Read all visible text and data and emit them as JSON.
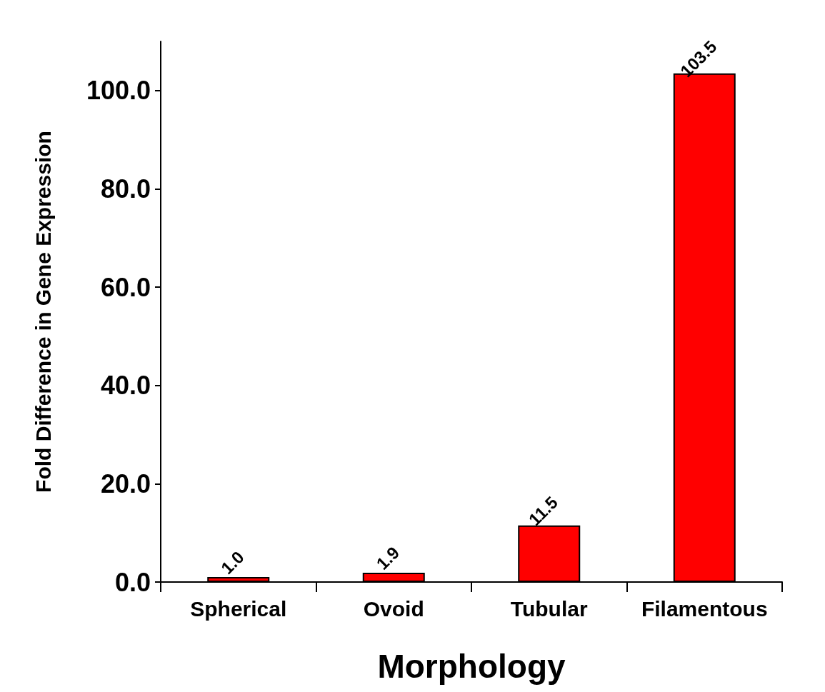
{
  "chart_data": {
    "type": "bar",
    "xlabel": "Morphology",
    "ylabel": "Fold Difference in Gene Expression",
    "categories": [
      "Spherical",
      "Ovoid",
      "Tubular",
      "Filamentous"
    ],
    "values": [
      1.0,
      1.9,
      11.5,
      103.5
    ],
    "value_labels": [
      "1.0",
      "1.9",
      "11.5",
      "103.5"
    ],
    "color": "#ff0000",
    "ylim": [
      0,
      110
    ],
    "yticks": [
      {
        "value": 0,
        "label": "0.0"
      },
      {
        "value": 20,
        "label": "20.0"
      },
      {
        "value": 40,
        "label": "40.0"
      },
      {
        "value": 60,
        "label": "60.0"
      },
      {
        "value": 80,
        "label": "80.0"
      },
      {
        "value": 100,
        "label": "100.0"
      }
    ],
    "grid": false
  }
}
